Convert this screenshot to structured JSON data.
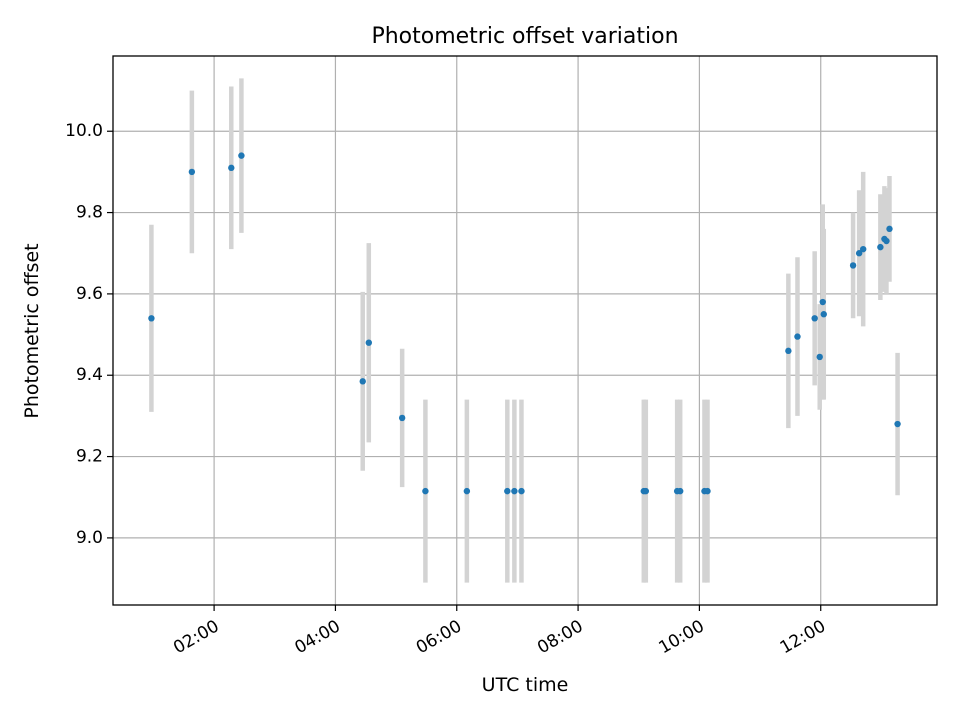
{
  "chart_data": {
    "type": "scatter",
    "title": "Photometric offset variation",
    "xlabel": "UTC time",
    "ylabel": "Photometric offset",
    "x_unit": "UTC time of day (HH:MM)",
    "xlim": [
      "00:20",
      "13:55"
    ],
    "ylim": [
      8.835,
      10.185
    ],
    "x_ticks": [
      "02:00",
      "04:00",
      "06:00",
      "08:00",
      "10:00",
      "12:00"
    ],
    "y_ticks": [
      9.0,
      9.2,
      9.4,
      9.6,
      9.8,
      10.0
    ],
    "y_tick_labels": [
      "9.0",
      "9.2",
      "9.4",
      "9.6",
      "9.8",
      "10.0"
    ],
    "grid": true,
    "legend": "none",
    "colors": {
      "points": "#1f77b4",
      "error_bars": "#d3d3d3",
      "grid": "#b0b0b0"
    },
    "series": [
      {
        "points": [
          {
            "x": "00:58",
            "y": 9.54,
            "yerr": 0.23
          },
          {
            "x": "01:38",
            "y": 9.9,
            "yerr": 0.2
          },
          {
            "x": "02:17",
            "y": 9.91,
            "yerr": 0.2
          },
          {
            "x": "02:27",
            "y": 9.94,
            "yerr": 0.19
          },
          {
            "x": "04:27",
            "y": 9.385,
            "yerr": 0.22
          },
          {
            "x": "04:33",
            "y": 9.48,
            "yerr": 0.245
          },
          {
            "x": "05:06",
            "y": 9.295,
            "yerr": 0.17
          },
          {
            "x": "05:29",
            "y": 9.115,
            "yerr": 0.225
          },
          {
            "x": "06:10",
            "y": 9.115,
            "yerr": 0.225
          },
          {
            "x": "06:50",
            "y": 9.115,
            "yerr": 0.225
          },
          {
            "x": "06:57",
            "y": 9.115,
            "yerr": 0.225
          },
          {
            "x": "07:04",
            "y": 9.115,
            "yerr": 0.225
          },
          {
            "x": "09:05",
            "y": 9.115,
            "yerr": 0.225
          },
          {
            "x": "09:07",
            "y": 9.115,
            "yerr": 0.225
          },
          {
            "x": "09:38",
            "y": 9.115,
            "yerr": 0.225
          },
          {
            "x": "09:41",
            "y": 9.115,
            "yerr": 0.225
          },
          {
            "x": "10:05",
            "y": 9.115,
            "yerr": 0.225
          },
          {
            "x": "10:08",
            "y": 9.115,
            "yerr": 0.225
          },
          {
            "x": "11:28",
            "y": 9.46,
            "yerr": 0.19
          },
          {
            "x": "11:37",
            "y": 9.495,
            "yerr": 0.195
          },
          {
            "x": "11:54",
            "y": 9.54,
            "yerr": 0.165
          },
          {
            "x": "11:59",
            "y": 9.445,
            "yerr": 0.13
          },
          {
            "x": "12:02",
            "y": 9.58,
            "yerr": 0.24
          },
          {
            "x": "12:03",
            "y": 9.55,
            "yerr": 0.21
          },
          {
            "x": "12:32",
            "y": 9.67,
            "yerr": 0.13
          },
          {
            "x": "12:38",
            "y": 9.7,
            "yerr": 0.155
          },
          {
            "x": "12:42",
            "y": 9.71,
            "yerr": 0.19
          },
          {
            "x": "12:59",
            "y": 9.715,
            "yerr": 0.13
          },
          {
            "x": "13:03",
            "y": 9.735,
            "yerr": 0.13
          },
          {
            "x": "13:05",
            "y": 9.73,
            "yerr": 0.13
          },
          {
            "x": "13:08",
            "y": 9.76,
            "yerr": 0.13
          },
          {
            "x": "13:16",
            "y": 9.28,
            "yerr": 0.175
          }
        ]
      }
    ]
  }
}
